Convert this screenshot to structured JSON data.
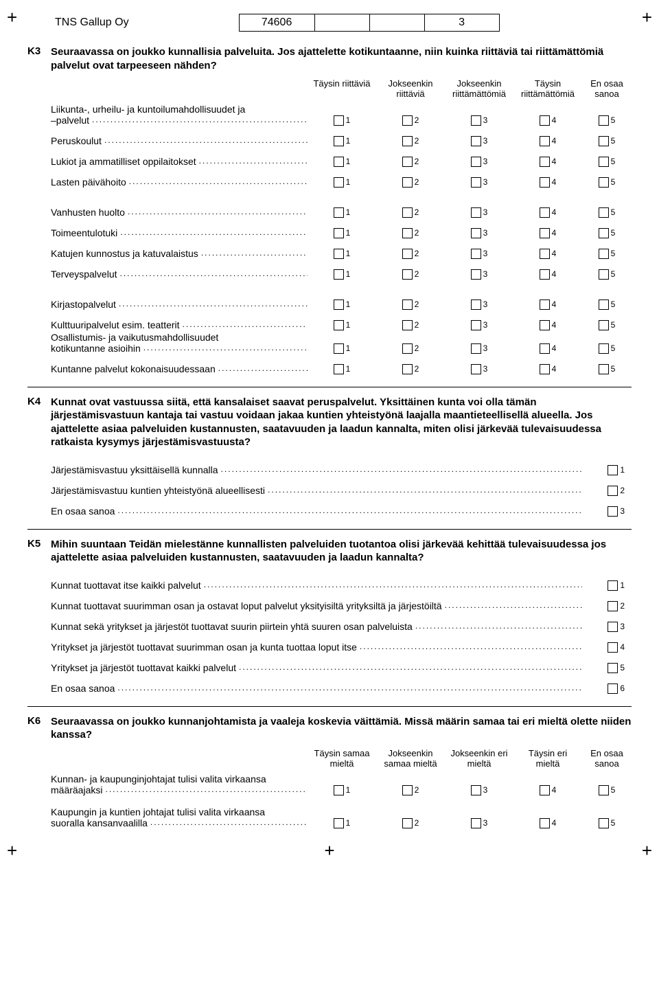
{
  "header": {
    "company": "TNS Gallup Oy",
    "code": "74606",
    "page": "3",
    "plus": "+"
  },
  "k3": {
    "num": "K3",
    "text": "Seuraavassa on joukko kunnallisia palveluita. Jos ajattelette kotikuntaanne, niin kuinka riittäviä tai riittämättömiä palvelut ovat tarpeeseen nähden?",
    "cols": [
      "Täysin riittäviä",
      "Jokseenkin riittäviä",
      "Jokseenkin riittämättömiä",
      "Täysin riittämättömiä",
      "En osaa sanoa"
    ],
    "groups": [
      {
        "rows": [
          {
            "multiline": true,
            "line1": "Liikunta-, urheilu- ja kuntoilumahdollisuudet ja",
            "line2": "–palvelut"
          },
          {
            "label": "Peruskoulut"
          },
          {
            "label": "Lukiot ja ammatilliset oppilaitokset"
          },
          {
            "label": "Lasten päivähoito"
          }
        ]
      },
      {
        "rows": [
          {
            "label": "Vanhusten huolto"
          },
          {
            "label": "Toimeentulotuki"
          },
          {
            "label": "Katujen kunnostus ja katuvalaistus"
          },
          {
            "label": "Terveyspalvelut"
          }
        ]
      },
      {
        "rows": [
          {
            "label": "Kirjastopalvelut"
          },
          {
            "label": "Kulttuuripalvelut esim. teatterit"
          },
          {
            "multiline": true,
            "line1": "Osallistumis- ja vaikutusmahdollisuudet",
            "line2": "kotikuntanne asioihin"
          },
          {
            "label": "Kuntanne palvelut kokonaisuudessaan"
          }
        ]
      }
    ],
    "scale": [
      "1",
      "2",
      "3",
      "4",
      "5"
    ]
  },
  "k4": {
    "num": "K4",
    "text": "Kunnat ovat vastuussa siitä, että kansalaiset saavat peruspalvelut. Yksittäinen kunta voi olla tämän järjestämisvastuun kantaja tai vastuu voidaan jakaa kuntien yhteistyönä laajalla maantieteellisellä alueella.  Jos ajattelette asiaa palveluiden kustannusten, saatavuuden ja laadun kannalta, miten olisi järkevää tulevaisuudessa ratkaista kysymys järjestämisvastuusta?",
    "options": [
      {
        "label": "Järjestämisvastuu yksittäisellä kunnalla",
        "n": "1"
      },
      {
        "label": "Järjestämisvastuu kuntien yhteistyönä alueellisesti",
        "n": "2"
      },
      {
        "label": "En osaa sanoa",
        "n": "3"
      }
    ]
  },
  "k5": {
    "num": "K5",
    "text": "Mihin suuntaan Teidän mielestänne kunnallisten palveluiden tuotantoa olisi järkevää kehittää tulevaisuudessa jos ajattelette asiaa palveluiden kustannusten, saatavuuden ja laadun kannalta?",
    "options": [
      {
        "label": "Kunnat tuottavat itse kaikki palvelut",
        "n": "1"
      },
      {
        "label": "Kunnat tuottavat suurimman osan ja ostavat loput palvelut yksityisiltä yrityksiltä ja järjestöiltä",
        "n": "2"
      },
      {
        "label": "Kunnat sekä yritykset ja järjestöt tuottavat suurin piirtein yhtä suuren osan palveluista",
        "n": "3"
      },
      {
        "label": "Yritykset ja järjestöt tuottavat suurimman osan ja kunta tuottaa loput itse",
        "n": "4"
      },
      {
        "label": "Yritykset ja järjestöt tuottavat kaikki palvelut",
        "n": "5"
      },
      {
        "label": "En osaa sanoa",
        "n": "6"
      }
    ]
  },
  "k6": {
    "num": "K6",
    "text": "Seuraavassa on joukko kunnanjohtamista ja vaaleja koskevia väittämiä. Missä määrin samaa tai eri mieltä olette niiden kanssa?",
    "cols": [
      "Täysin samaa mieltä",
      "Jokseenkin samaa mieltä",
      "Jokseenkin eri mieltä",
      "Täysin eri mieltä",
      "En osaa sanoa"
    ],
    "groups": [
      {
        "rows": [
          {
            "multiline": true,
            "line1": "Kunnan- ja kaupunginjohtajat tulisi valita virkaansa",
            "line2": "määräajaksi"
          }
        ]
      },
      {
        "rows": [
          {
            "multiline": true,
            "line1": "Kaupungin ja kuntien johtajat tulisi valita virkaansa",
            "line2": "suoralla kansanvaalilla"
          }
        ]
      }
    ],
    "scale": [
      "1",
      "2",
      "3",
      "4",
      "5"
    ]
  }
}
